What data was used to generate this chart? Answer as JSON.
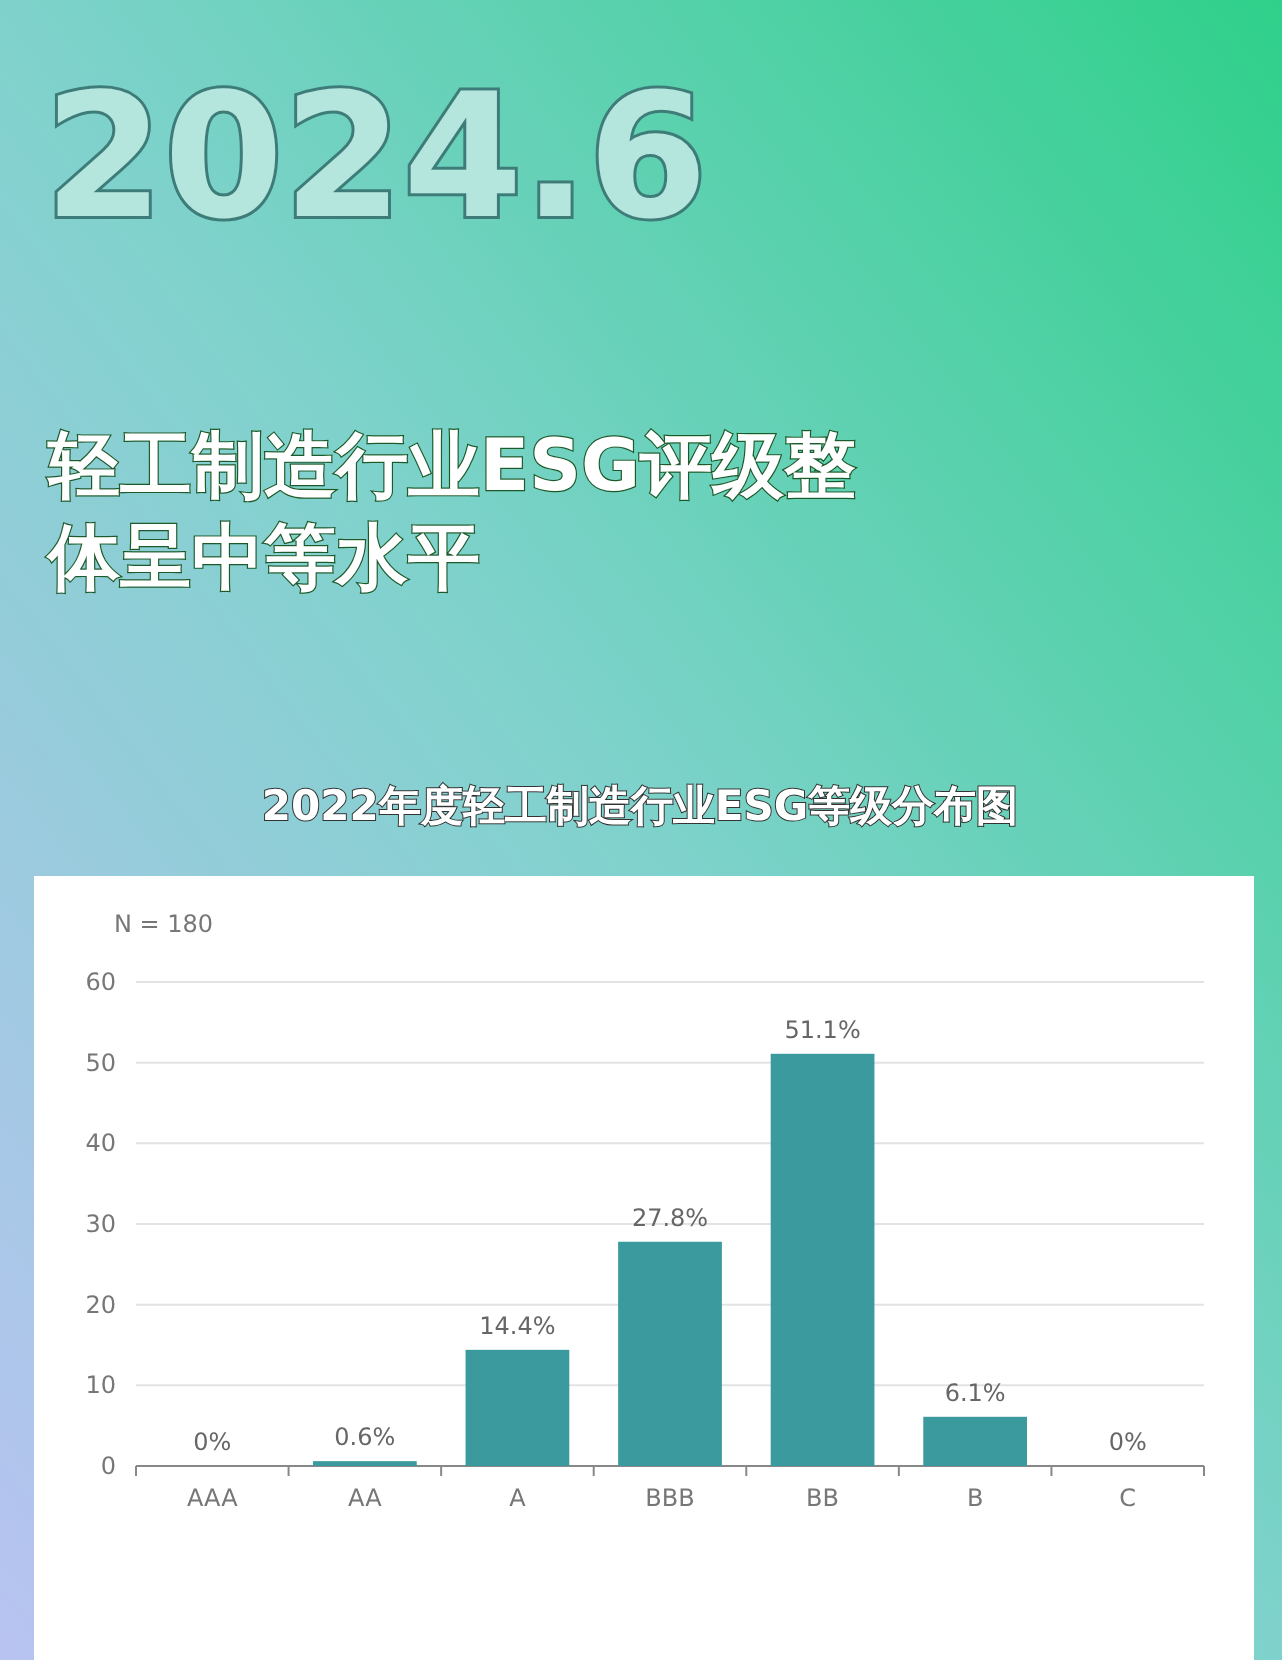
{
  "chart_data": {
    "type": "bar",
    "title": "轻工制造行业ESG评级整体呈中等水平",
    "subtitle": "2022年度轻工制造行业ESG等级分布图",
    "annotations": [
      "2024.6",
      "N = 180"
    ],
    "categories": [
      "AAA",
      "AA",
      "A",
      "BBB",
      "BB",
      "B",
      "C"
    ],
    "values": [
      0,
      0.6,
      14.4,
      27.8,
      51.1,
      6.1,
      0
    ],
    "value_labels": [
      "0%",
      "0.6%",
      "14.4%",
      "27.8%",
      "51.1%",
      "6.1%",
      "0%"
    ],
    "color": "#3a9a9e",
    "ylim": [
      0,
      60
    ],
    "yticks": [
      0,
      10,
      20,
      30,
      40,
      50,
      60
    ],
    "grid": "y"
  }
}
